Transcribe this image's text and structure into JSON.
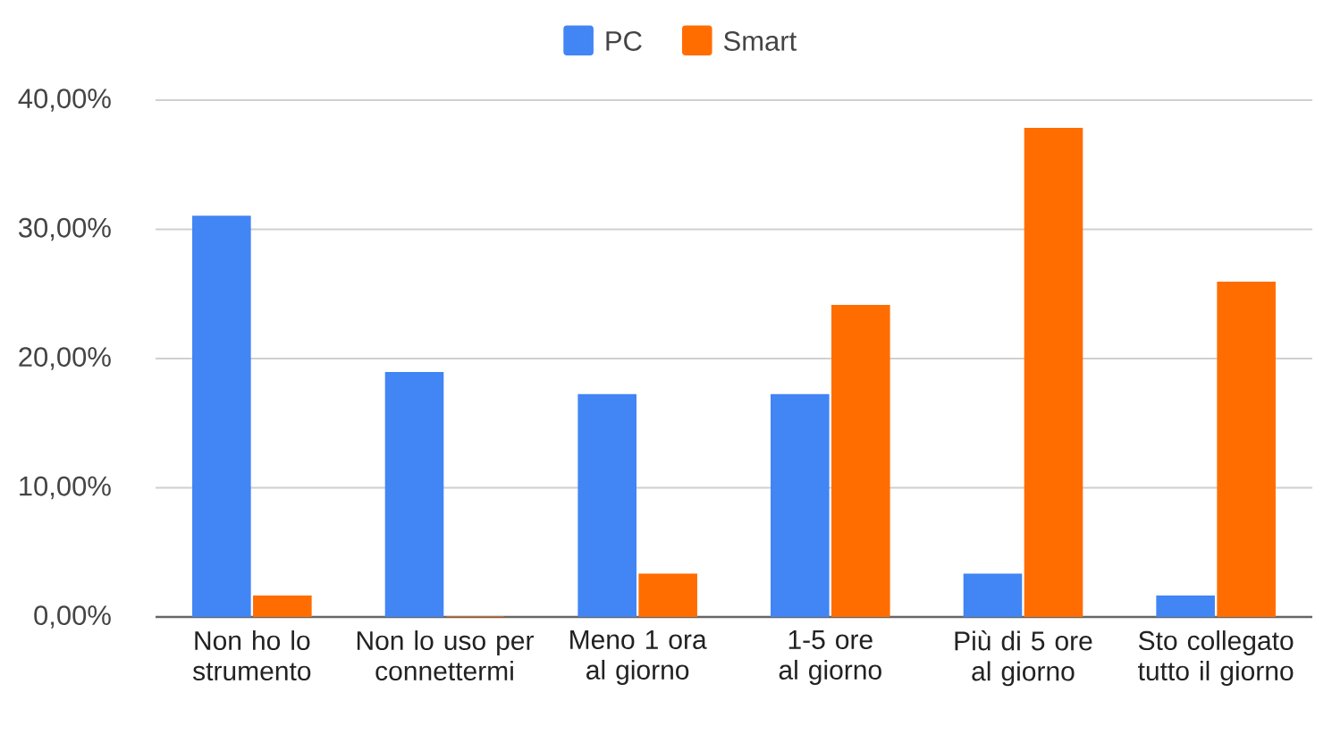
{
  "chart_data": {
    "type": "bar",
    "categories": [
      "Non ho lo strumento",
      "Non lo uso per connettermi",
      "Meno 1 ora al giorno",
      "1-5 ore al giorno",
      "Più di 5 ore al giorno",
      "Sto collegato tutto il giorno"
    ],
    "series": [
      {
        "name": "PC",
        "color": "#4285f4",
        "values": [
          31.0,
          18.9,
          17.2,
          17.2,
          3.3,
          1.6
        ]
      },
      {
        "name": "Smart",
        "color": "#ff6d01",
        "values": [
          1.6,
          0,
          3.3,
          24.1,
          37.8,
          25.9
        ]
      }
    ],
    "ylim": [
      0,
      40
    ],
    "yticks": [
      {
        "value": 0,
        "label": "0,00%"
      },
      {
        "value": 10,
        "label": "10,00%"
      },
      {
        "value": 20,
        "label": "20,00%"
      },
      {
        "value": 30,
        "label": "30,00%"
      },
      {
        "value": 40,
        "label": "40,00%"
      }
    ],
    "grid": "y",
    "legend": "top"
  }
}
